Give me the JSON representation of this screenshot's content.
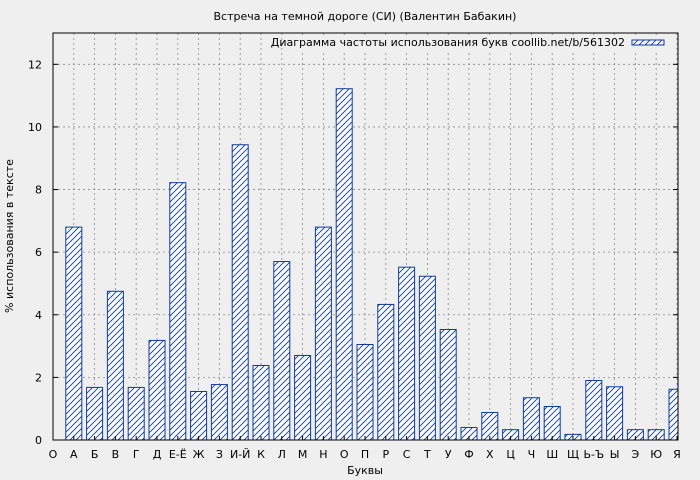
{
  "chart_data": {
    "type": "bar",
    "title": "Встреча на темной дороге (СИ) (Валентин Бабакин)",
    "xlabel": "Буквы",
    "ylabel": "% использования в тексте",
    "ylim": [
      0,
      13
    ],
    "yticks": [
      0,
      2,
      4,
      6,
      8,
      10,
      12
    ],
    "grid": true,
    "legend_position": "top-right",
    "series": [
      {
        "name": "Диаграмма частоты использования букв coollib.net/b/561302",
        "color": "#0d3b9c",
        "fill_pattern": "diagonal-hatch",
        "values": [
          0,
          6.8,
          1.68,
          4.75,
          1.68,
          3.18,
          8.22,
          1.55,
          1.77,
          9.43,
          2.38,
          5.7,
          2.7,
          6.8,
          11.22,
          3.05,
          4.33,
          5.52,
          5.23,
          3.53,
          0.4,
          0.88,
          0.33,
          1.35,
          1.07,
          0.18,
          1.9,
          1.7,
          0.33,
          0.33,
          1.62
        ]
      }
    ],
    "categories": [
      "О",
      "А",
      "Б",
      "В",
      "Г",
      "Д",
      "Е-Ё",
      "Ж",
      "З",
      "И-Й",
      "К",
      "Л",
      "М",
      "Н",
      "О",
      "П",
      "Р",
      "С",
      "Т",
      "У",
      "Ф",
      "Х",
      "Ц",
      "Ч",
      "Ш",
      "Щ",
      "Ь-Ъ",
      "Ы",
      "Э",
      "Ю",
      "Я"
    ]
  }
}
